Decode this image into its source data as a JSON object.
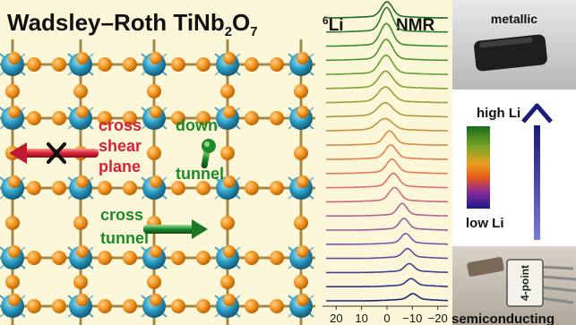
{
  "left": {
    "title_main": "Wadsley–Roth TiNb",
    "title_sub1": "2",
    "title_sub2": "7",
    "title_mid": "O",
    "label_cross_shear": [
      "cross",
      "shear",
      "plane"
    ],
    "label_down_tunnel": [
      "down",
      "tunnel"
    ],
    "label_cross_tunnel": [
      "cross",
      "tunnel"
    ],
    "colors": {
      "crossShear": "#d8203a",
      "tunnel": "#1f8a2c",
      "atom": "#f0921a",
      "octahedron": "#1e8fb5"
    }
  },
  "nmr": {
    "nucleus_super": "6",
    "nucleus": "Li",
    "label": "NMR",
    "x_ticks": [
      "20",
      "10",
      "0",
      "−10",
      "−20"
    ],
    "spectra_colors": [
      "#1d6b2a",
      "#2a7a2a",
      "#3d8a2c",
      "#4d962c",
      "#62a22d",
      "#7da532",
      "#93a23a",
      "#a89a40",
      "#c49341",
      "#d98a43",
      "#e67f4a",
      "#e87858",
      "#de6e6b",
      "#c96a80",
      "#b06494",
      "#935ea2",
      "#7c58a8",
      "#5f4d9e",
      "#433f93",
      "#2e3585",
      "#1c2a77"
    ]
  },
  "right": {
    "top_label": "metallic",
    "bottom_label": "semiconducting",
    "legend_high": "high Li",
    "legend_low": "low Li",
    "probe_label": "4-point"
  }
}
